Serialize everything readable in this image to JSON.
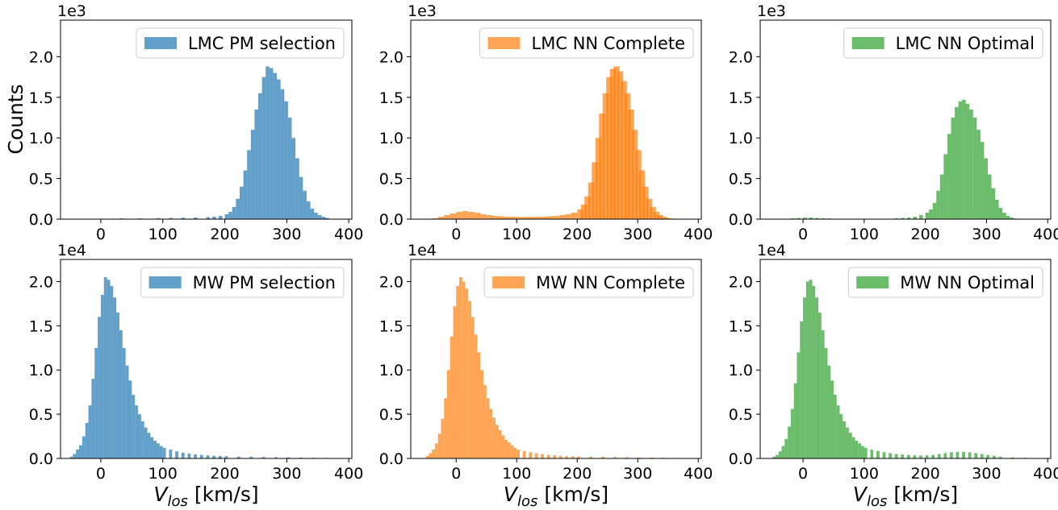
{
  "figure": {
    "ylabel_shared": "Counts",
    "xlabel": "V_los [km/s]",
    "xlabel_main": "V",
    "xlabel_sub": "los",
    "xlabel_unit": " [km/s]"
  },
  "chart_data": [
    {
      "type": "bar",
      "name": "LMC PM selection",
      "color": "#1f77b4",
      "opacity": 0.7,
      "legend": "LMC PM selection",
      "multiplier": "1e3",
      "scale": 1000,
      "xlim": [
        -65,
        405
      ],
      "ylim": [
        0,
        2.45
      ],
      "xticks": [
        0,
        100,
        200,
        300,
        400
      ],
      "xtick_labels": [
        "0",
        "100",
        "200",
        "300",
        "400"
      ],
      "yticks": [
        0,
        0.5,
        1.0,
        1.5,
        2.0
      ],
      "ytick_labels": [
        "0.0",
        "0.5",
        "1.0",
        "1.5",
        "2.0"
      ],
      "bins": {
        "x": [
          -40,
          0,
          30,
          60,
          90,
          110,
          130,
          150,
          170,
          180,
          190,
          200,
          206,
          212,
          218,
          224,
          230,
          236,
          242,
          248,
          254,
          260,
          266,
          272,
          278,
          284,
          290,
          296,
          302,
          308,
          314,
          320,
          326,
          332,
          338,
          344,
          350,
          356,
          362,
          368
        ],
        "width": 6,
        "values": [
          0.0,
          0.005,
          0.01,
          0.01,
          0.012,
          0.015,
          0.018,
          0.02,
          0.025,
          0.03,
          0.04,
          0.06,
          0.09,
          0.15,
          0.25,
          0.4,
          0.6,
          0.85,
          1.1,
          1.35,
          1.55,
          1.75,
          1.88,
          1.86,
          1.8,
          1.72,
          1.6,
          1.45,
          1.25,
          1.0,
          0.75,
          0.52,
          0.35,
          0.22,
          0.13,
          0.08,
          0.05,
          0.03,
          0.015,
          0.005
        ]
      }
    },
    {
      "type": "bar",
      "name": "LMC NN Complete",
      "color": "#ff7f0e",
      "opacity": 0.7,
      "legend": "LMC NN Complete",
      "multiplier": "1e3",
      "scale": 1000,
      "xlim": [
        -75,
        405
      ],
      "ylim": [
        0,
        2.45
      ],
      "xticks": [
        0,
        100,
        200,
        300,
        400
      ],
      "xtick_labels": [
        "0",
        "100",
        "200",
        "300",
        "400"
      ],
      "yticks": [
        0,
        0.5,
        1.0,
        1.5,
        2.0
      ],
      "ytick_labels": [
        "0.0",
        "0.5",
        "1.0",
        "1.5",
        "2.0"
      ],
      "bins": {
        "x": [
          -50,
          -40,
          -30,
          -20,
          -10,
          0,
          10,
          20,
          30,
          40,
          50,
          60,
          70,
          80,
          90,
          100,
          110,
          120,
          130,
          140,
          150,
          160,
          170,
          180,
          190,
          200,
          206,
          212,
          218,
          224,
          230,
          236,
          242,
          248,
          254,
          260,
          266,
          272,
          278,
          284,
          290,
          296,
          302,
          308,
          314,
          320,
          326,
          332,
          338,
          344,
          350,
          356
        ],
        "width": 10,
        "values": [
          0.005,
          0.01,
          0.03,
          0.05,
          0.07,
          0.09,
          0.1,
          0.09,
          0.08,
          0.06,
          0.05,
          0.04,
          0.035,
          0.03,
          0.03,
          0.028,
          0.028,
          0.028,
          0.03,
          0.03,
          0.035,
          0.04,
          0.05,
          0.06,
          0.08,
          0.12,
          0.18,
          0.28,
          0.45,
          0.7,
          1.0,
          1.3,
          1.55,
          1.75,
          1.85,
          1.88,
          1.82,
          1.7,
          1.55,
          1.35,
          1.1,
          0.85,
          0.6,
          0.4,
          0.25,
          0.15,
          0.09,
          0.05,
          0.03,
          0.015,
          0.008,
          0.003
        ]
      }
    },
    {
      "type": "bar",
      "name": "LMC NN Optimal",
      "color": "#2ca02c",
      "opacity": 0.7,
      "legend": "LMC NN Optimal",
      "multiplier": "1e3",
      "scale": 1000,
      "xlim": [
        -70,
        405
      ],
      "ylim": [
        0,
        2.45
      ],
      "xticks": [
        0,
        100,
        200,
        300,
        400
      ],
      "xtick_labels": [
        "0",
        "100",
        "200",
        "300",
        "400"
      ],
      "yticks": [
        0,
        0.5,
        1.0,
        1.5,
        2.0
      ],
      "ytick_labels": [
        "0.0",
        "0.5",
        "1.0",
        "1.5",
        "2.0"
      ],
      "bins": {
        "x": [
          -20,
          -10,
          0,
          10,
          20,
          30,
          40,
          150,
          160,
          170,
          180,
          190,
          200,
          206,
          212,
          218,
          224,
          230,
          236,
          242,
          248,
          254,
          260,
          266,
          272,
          278,
          284,
          290,
          296,
          302,
          308,
          314,
          320,
          326,
          332,
          338,
          344
        ],
        "width": 6,
        "values": [
          0.01,
          0.015,
          0.02,
          0.02,
          0.015,
          0.01,
          0.008,
          0.01,
          0.015,
          0.02,
          0.03,
          0.05,
          0.08,
          0.12,
          0.2,
          0.35,
          0.55,
          0.8,
          1.05,
          1.25,
          1.38,
          1.45,
          1.47,
          1.42,
          1.35,
          1.25,
          1.1,
          0.95,
          0.75,
          0.55,
          0.38,
          0.24,
          0.14,
          0.08,
          0.04,
          0.02,
          0.008
        ]
      }
    },
    {
      "type": "bar",
      "name": "MW PM selection",
      "color": "#1f77b4",
      "opacity": 0.7,
      "legend": "MW PM selection",
      "multiplier": "1e4",
      "scale": 10000,
      "xlim": [
        -65,
        405
      ],
      "ylim": [
        0,
        2.25
      ],
      "xticks": [
        0,
        100,
        200,
        300,
        400
      ],
      "xtick_labels": [
        "0",
        "100",
        "200",
        "300",
        "400"
      ],
      "yticks": [
        0,
        0.5,
        1.0,
        1.5,
        2.0
      ],
      "ytick_labels": [
        "0.0",
        "0.5",
        "1.0",
        "1.5",
        "2.0"
      ],
      "bins": {
        "x": [
          -50,
          -45,
          -40,
          -35,
          -30,
          -25,
          -20,
          -15,
          -10,
          -5,
          0,
          5,
          10,
          15,
          20,
          25,
          30,
          35,
          40,
          45,
          50,
          55,
          60,
          65,
          70,
          75,
          80,
          85,
          90,
          95,
          100,
          110,
          120,
          130,
          140,
          150,
          160,
          170,
          180,
          190,
          200,
          220,
          240,
          260,
          280,
          300,
          320,
          340,
          360,
          380
        ],
        "width": 5,
        "values": [
          0.02,
          0.05,
          0.1,
          0.15,
          0.25,
          0.4,
          0.6,
          0.9,
          1.25,
          1.6,
          1.85,
          2.05,
          2.02,
          1.95,
          1.82,
          1.65,
          1.45,
          1.25,
          1.05,
          0.88,
          0.72,
          0.6,
          0.5,
          0.42,
          0.35,
          0.29,
          0.24,
          0.2,
          0.17,
          0.14,
          0.12,
          0.1,
          0.08,
          0.065,
          0.055,
          0.045,
          0.04,
          0.035,
          0.03,
          0.028,
          0.025,
          0.02,
          0.018,
          0.016,
          0.014,
          0.012,
          0.01,
          0.008,
          0.006,
          0.004
        ]
      }
    },
    {
      "type": "bar",
      "name": "MW NN Complete",
      "color": "#ff7f0e",
      "opacity": 0.7,
      "legend": "MW NN Complete",
      "multiplier": "1e4",
      "scale": 10000,
      "xlim": [
        -75,
        405
      ],
      "ylim": [
        0,
        2.25
      ],
      "xticks": [
        0,
        100,
        200,
        300,
        400
      ],
      "xtick_labels": [
        "0",
        "100",
        "200",
        "300",
        "400"
      ],
      "yticks": [
        0,
        0.5,
        1.0,
        1.5,
        2.0
      ],
      "ytick_labels": [
        "0.0",
        "0.5",
        "1.0",
        "1.5",
        "2.0"
      ],
      "bins": {
        "x": [
          -50,
          -45,
          -40,
          -35,
          -30,
          -25,
          -20,
          -15,
          -10,
          -5,
          0,
          5,
          10,
          15,
          20,
          25,
          30,
          35,
          40,
          45,
          50,
          55,
          60,
          65,
          70,
          75,
          80,
          85,
          90,
          95,
          100,
          110,
          120,
          130,
          140,
          150,
          160,
          170,
          180,
          190,
          200,
          220,
          240,
          260,
          280,
          300,
          320,
          340,
          360,
          380
        ],
        "width": 5,
        "values": [
          0.03,
          0.06,
          0.1,
          0.17,
          0.28,
          0.45,
          0.68,
          1.0,
          1.38,
          1.72,
          1.95,
          2.05,
          2.0,
          1.92,
          1.78,
          1.6,
          1.4,
          1.2,
          1.0,
          0.83,
          0.68,
          0.56,
          0.46,
          0.38,
          0.32,
          0.26,
          0.21,
          0.18,
          0.15,
          0.12,
          0.1,
          0.085,
          0.07,
          0.058,
          0.048,
          0.04,
          0.035,
          0.03,
          0.026,
          0.023,
          0.02,
          0.018,
          0.017,
          0.016,
          0.014,
          0.012,
          0.01,
          0.008,
          0.006,
          0.004
        ]
      }
    },
    {
      "type": "bar",
      "name": "MW NN Optimal",
      "color": "#2ca02c",
      "opacity": 0.7,
      "legend": "MW NN Optimal",
      "multiplier": "1e4",
      "scale": 10000,
      "xlim": [
        -70,
        405
      ],
      "ylim": [
        0,
        2.25
      ],
      "xticks": [
        0,
        100,
        200,
        300,
        400
      ],
      "xtick_labels": [
        "0",
        "100",
        "200",
        "300",
        "400"
      ],
      "yticks": [
        0,
        0.5,
        1.0,
        1.5,
        2.0
      ],
      "ytick_labels": [
        "0.0",
        "0.5",
        "1.0",
        "1.5",
        "2.0"
      ],
      "bins": {
        "x": [
          -50,
          -45,
          -40,
          -35,
          -30,
          -25,
          -20,
          -15,
          -10,
          -5,
          0,
          5,
          10,
          15,
          20,
          25,
          30,
          35,
          40,
          45,
          50,
          55,
          60,
          65,
          70,
          75,
          80,
          85,
          90,
          95,
          100,
          110,
          120,
          130,
          140,
          150,
          160,
          170,
          180,
          190,
          200,
          210,
          220,
          230,
          240,
          250,
          260,
          270,
          280,
          290,
          300,
          310,
          320,
          340,
          360,
          380
        ],
        "width": 5,
        "values": [
          0.02,
          0.04,
          0.08,
          0.14,
          0.22,
          0.36,
          0.56,
          0.85,
          1.2,
          1.55,
          1.82,
          2.0,
          2.02,
          1.95,
          1.82,
          1.65,
          1.45,
          1.25,
          1.05,
          0.88,
          0.72,
          0.6,
          0.5,
          0.42,
          0.35,
          0.29,
          0.24,
          0.2,
          0.17,
          0.14,
          0.12,
          0.1,
          0.085,
          0.07,
          0.06,
          0.05,
          0.045,
          0.04,
          0.035,
          0.033,
          0.035,
          0.04,
          0.05,
          0.06,
          0.07,
          0.075,
          0.075,
          0.07,
          0.06,
          0.05,
          0.04,
          0.03,
          0.02,
          0.012,
          0.007,
          0.004
        ]
      }
    }
  ]
}
